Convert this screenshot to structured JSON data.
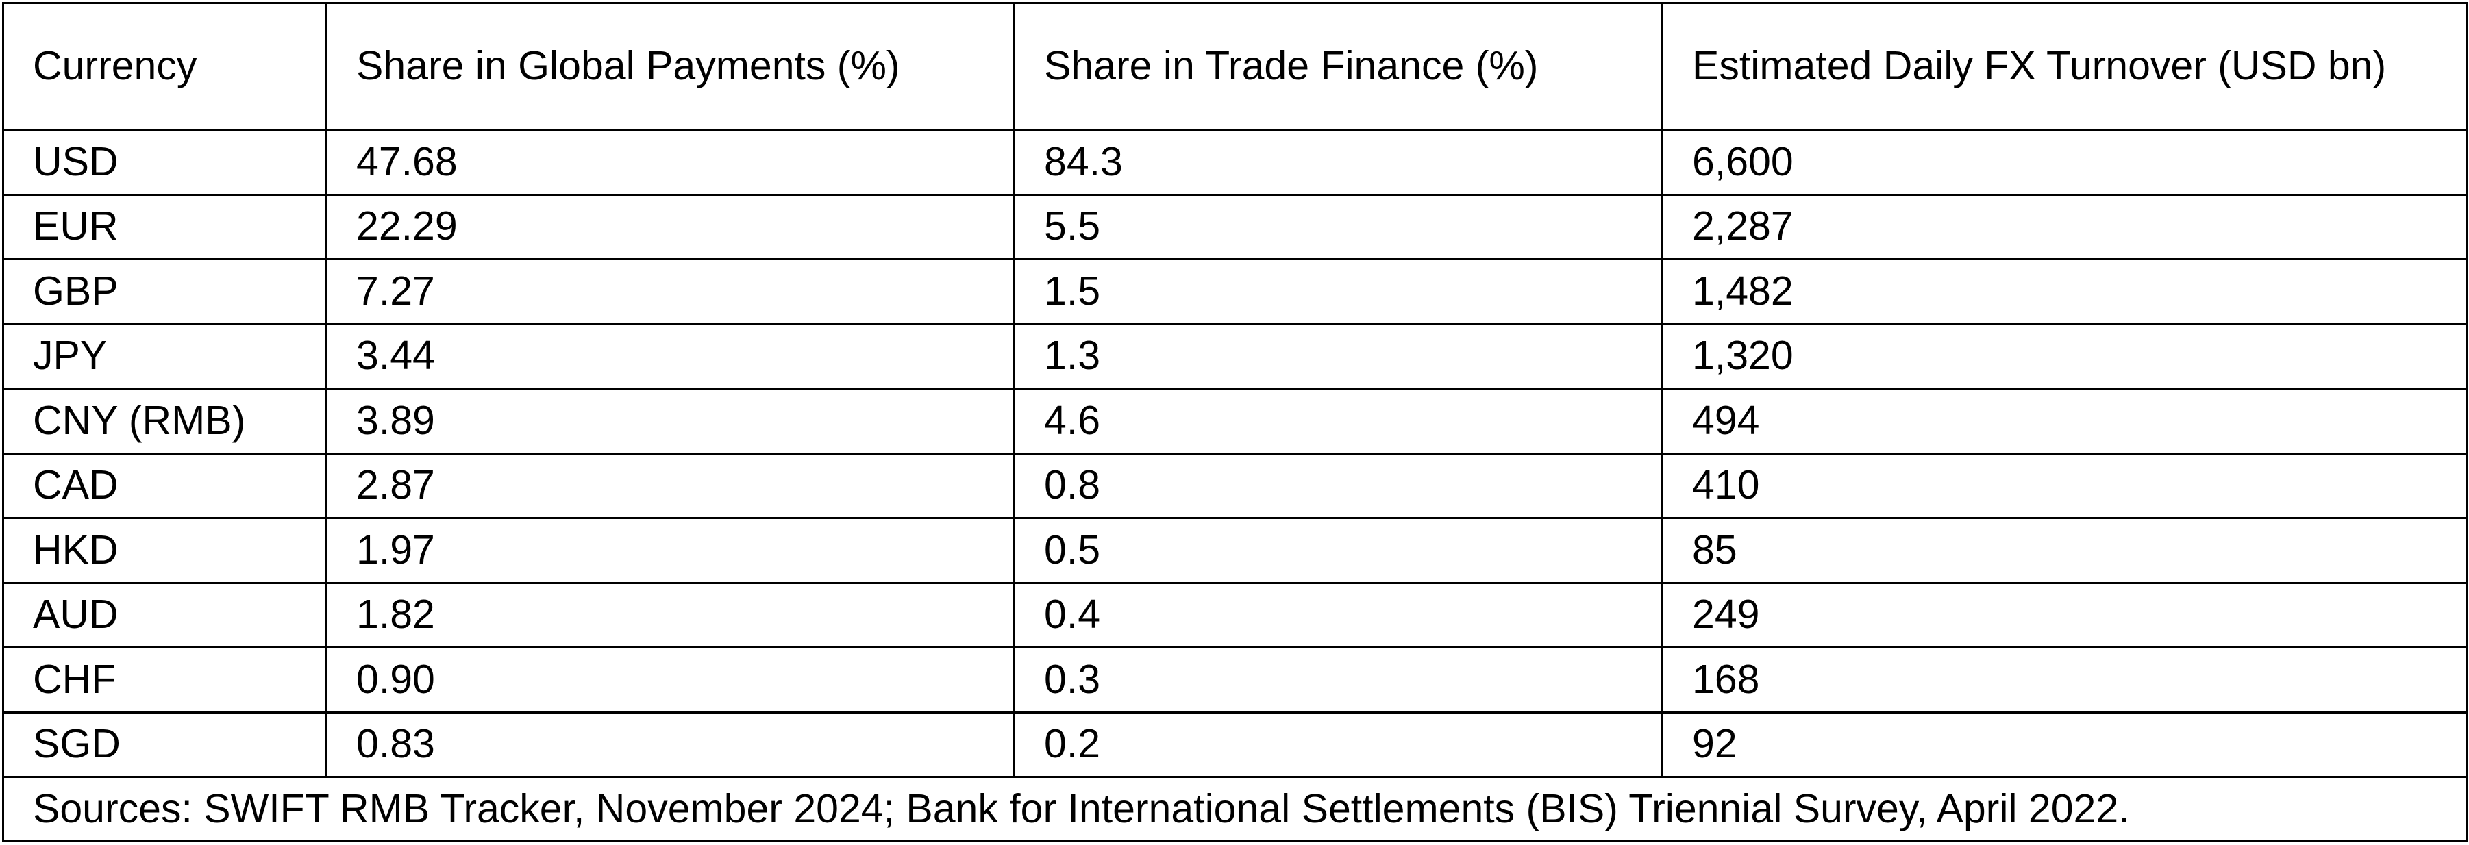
{
  "table": {
    "headers": [
      "Currency",
      "Share in Global Payments (%)",
      "Share in Trade Finance (%)",
      "Estimated Daily FX Turnover (USD bn)"
    ],
    "rows": [
      [
        "USD",
        "47.68",
        "84.3",
        "6,600"
      ],
      [
        "EUR",
        "22.29",
        "5.5",
        "2,287"
      ],
      [
        "GBP",
        "7.27",
        "1.5",
        "1,482"
      ],
      [
        "JPY",
        "3.44",
        "1.3",
        "1,320"
      ],
      [
        "CNY (RMB)",
        "3.89",
        "4.6",
        "494"
      ],
      [
        "CAD",
        "2.87",
        "0.8",
        "410"
      ],
      [
        "HKD",
        "1.97",
        "0.5",
        "85"
      ],
      [
        "AUD",
        "1.82",
        "0.4",
        "249"
      ],
      [
        "CHF",
        "0.90",
        "0.3",
        "168"
      ],
      [
        "SGD",
        "0.83",
        "0.2",
        "92"
      ]
    ],
    "sources": "Sources: SWIFT RMB Tracker, November 2024; Bank for International Settlements (BIS) Triennial Survey, April 2022."
  }
}
